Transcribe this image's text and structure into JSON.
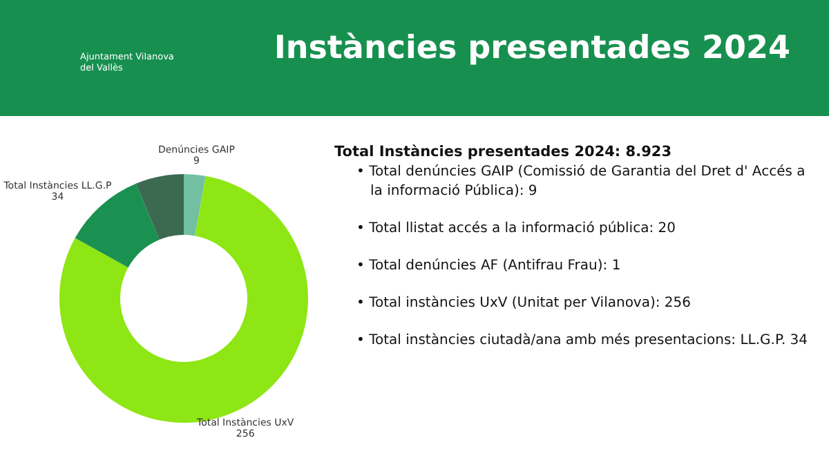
{
  "chart_data": {
    "type": "donut",
    "title": "Instàncies presentades 2024",
    "categories": [
      "Denúncies GAIP",
      "Total Instàncies UxV",
      "Total Instàncies LL.G.P",
      null
    ],
    "values": [
      9,
      256,
      34,
      20
    ],
    "colors": [
      "#72bfa2",
      "#8ee614",
      "#1a9150",
      "#3b6a50"
    ],
    "value_labels": [
      "9",
      "256",
      "34",
      null
    ],
    "annotations": [
      "Ajuntament Vilanova del Vallès",
      "Total Instàncies presentades 2024: 8.923",
      "• Total denúncies GAIP (Comissió de Garantia del Dret d' Accés a la informació Pública): 9",
      "• Total llistat accés a la informació pública: 20",
      "• Total denúncies AF (Antifrau Frau): 1",
      "• Total instàncies UxV (Unitat per Vilanova): 256",
      "• Total instàncies ciutadà/ana amb més presentacions: LL.G.P. 34"
    ]
  }
}
